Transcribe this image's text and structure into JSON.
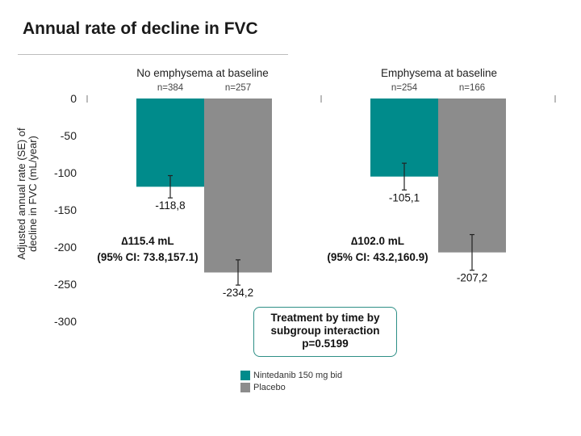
{
  "title": "Annual rate of decline in FVC",
  "chart_data": {
    "type": "bar",
    "ylabel_lines": [
      "Adjusted annual rate (SE) of",
      "decline in FVC (mL/year)"
    ],
    "ylim": [
      -300,
      0
    ],
    "yticks": [
      0,
      -50,
      -100,
      -150,
      -200,
      -250,
      -300
    ],
    "groups": [
      {
        "label": "No emphysema at baseline",
        "bars": [
          {
            "series": "Nintedanib 150 mg bid",
            "n_label": "n=384",
            "value": -118.8,
            "value_label": "-118,8",
            "se": 15
          },
          {
            "series": "Placebo",
            "n_label": "n=257",
            "value": -234.2,
            "value_label": "-234,2",
            "se": 17
          }
        ],
        "delta_lines": [
          "∆115.4 mL",
          "(95% CI: 73.8,157.1)"
        ]
      },
      {
        "label": "Emphysema at baseline",
        "bars": [
          {
            "series": "Nintedanib 150 mg bid",
            "n_label": "n=254",
            "value": -105.1,
            "value_label": "-105,1",
            "se": 18
          },
          {
            "series": "Placebo",
            "n_label": "n=166",
            "value": -207.2,
            "value_label": "-207,2",
            "se": 24
          }
        ],
        "delta_lines": [
          "∆102.0 mL",
          "(95% CI: 43.2,160.9)"
        ]
      }
    ],
    "series": [
      {
        "name": "Nintedanib 150 mg bid",
        "color": "#008b8b"
      },
      {
        "name": "Placebo",
        "color": "#8c8c8c"
      }
    ],
    "interaction_lines": [
      "Treatment by time by",
      "subgroup interaction",
      "p=0.5199"
    ]
  }
}
